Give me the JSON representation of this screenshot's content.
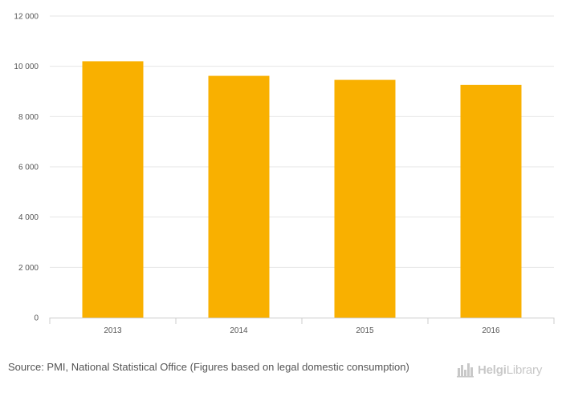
{
  "chart_data": {
    "type": "bar",
    "categories": [
      "2013",
      "2014",
      "2015",
      "2016"
    ],
    "values": [
      10200,
      9620,
      9460,
      9260
    ],
    "ylim": [
      0,
      12000
    ],
    "yticks": [
      0,
      2000,
      4000,
      6000,
      8000,
      10000,
      12000
    ],
    "ytick_labels": [
      "0",
      "2 000",
      "4 000",
      "6 000",
      "8 000",
      "10 000",
      "12 000"
    ],
    "grid": true,
    "bar_color": "#f9b000"
  },
  "footer": {
    "source_text": "Source: PMI, National Statistical Office (Figures based on legal domestic consumption)"
  },
  "logo": {
    "brand_part1": "Helgi",
    "brand_part2": "Library",
    "color": "#c8c8c8"
  }
}
